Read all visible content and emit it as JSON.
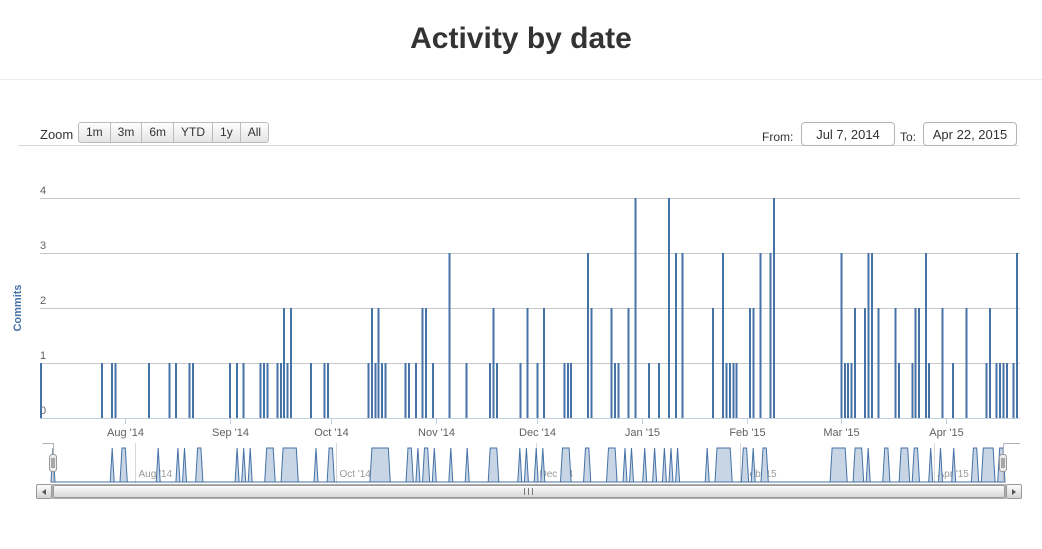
{
  "title": "Activity by date",
  "toolbar": {
    "zoom_label": "Zoom",
    "zoom_buttons": [
      "1m",
      "3m",
      "6m",
      "YTD",
      "1y",
      "All"
    ],
    "from_label": "From:",
    "from_value": "Jul 7, 2014",
    "to_label": "To:",
    "to_value": "Apr 22, 2015"
  },
  "icons": {
    "scrollbar_left": "left-arrow-icon",
    "scrollbar_right": "right-arrow-icon",
    "navigator_handle": "drag-handle-icon",
    "scrollbar_grip": "grip-icon"
  },
  "colors": {
    "bar": "#4572a7",
    "navigator_fill": "#c7d5e5",
    "navigator_line": "#4572a7",
    "grid": "#c8c8c8",
    "axis_line": "#c0d0e0",
    "tick": "#c0d0e0",
    "label": "#606060",
    "nav_label": "#999999",
    "nav_tick": "#d8d8d8",
    "outline": "#b2b1b6",
    "axis_title": "#4572a7",
    "title_color": "#333333"
  },
  "chart_data": {
    "type": "bar",
    "title": "Activity by date",
    "ylabel": "Commits",
    "xlabel": "",
    "ylim": [
      0,
      4
    ],
    "y_ticks": [
      0,
      1,
      2,
      3,
      4
    ],
    "grid": true,
    "x_start": "2014-07-07",
    "x_end": "2015-04-22",
    "x_ticks_main": [
      {
        "date": "2014-08-01",
        "label": "Aug '14"
      },
      {
        "date": "2014-09-01",
        "label": "Sep '14"
      },
      {
        "date": "2014-10-01",
        "label": "Oct '14"
      },
      {
        "date": "2014-11-01",
        "label": "Nov '14"
      },
      {
        "date": "2014-12-01",
        "label": "Dec '14"
      },
      {
        "date": "2015-01-01",
        "label": "Jan '15"
      },
      {
        "date": "2015-02-01",
        "label": "Feb '15"
      },
      {
        "date": "2015-03-01",
        "label": "Mar '15"
      },
      {
        "date": "2015-04-01",
        "label": "Apr '15"
      }
    ],
    "x_ticks_navigator": [
      {
        "date": "2014-08-01",
        "label": "Aug '14"
      },
      {
        "date": "2014-10-01",
        "label": "Oct '14"
      },
      {
        "date": "2014-12-01",
        "label": "Dec '14"
      },
      {
        "date": "2015-02-01",
        "label": "Feb '15"
      },
      {
        "date": "2015-04-01",
        "label": "Apr '15"
      }
    ],
    "series_name": "Commits",
    "points": [
      [
        "2014-07-07",
        1
      ],
      [
        "2014-07-25",
        1
      ],
      [
        "2014-07-28",
        1
      ],
      [
        "2014-07-29",
        1
      ],
      [
        "2014-08-08",
        1
      ],
      [
        "2014-08-14",
        1
      ],
      [
        "2014-08-16",
        1
      ],
      [
        "2014-08-20",
        1
      ],
      [
        "2014-08-21",
        1
      ],
      [
        "2014-09-01",
        1
      ],
      [
        "2014-09-03",
        1
      ],
      [
        "2014-09-05",
        1
      ],
      [
        "2014-09-10",
        1
      ],
      [
        "2014-09-11",
        1
      ],
      [
        "2014-09-12",
        1
      ],
      [
        "2014-09-15",
        1
      ],
      [
        "2014-09-16",
        1
      ],
      [
        "2014-09-17",
        2
      ],
      [
        "2014-09-18",
        1
      ],
      [
        "2014-09-19",
        2
      ],
      [
        "2014-09-25",
        1
      ],
      [
        "2014-09-29",
        1
      ],
      [
        "2014-09-30",
        1
      ],
      [
        "2014-10-12",
        1
      ],
      [
        "2014-10-13",
        2
      ],
      [
        "2014-10-14",
        1
      ],
      [
        "2014-10-15",
        2
      ],
      [
        "2014-10-16",
        1
      ],
      [
        "2014-10-17",
        1
      ],
      [
        "2014-10-23",
        1
      ],
      [
        "2014-10-24",
        1
      ],
      [
        "2014-10-26",
        1
      ],
      [
        "2014-10-28",
        2
      ],
      [
        "2014-10-29",
        2
      ],
      [
        "2014-10-31",
        1
      ],
      [
        "2014-11-05",
        3
      ],
      [
        "2014-11-10",
        1
      ],
      [
        "2014-11-17",
        1
      ],
      [
        "2014-11-18",
        2
      ],
      [
        "2014-11-19",
        1
      ],
      [
        "2014-11-26",
        1
      ],
      [
        "2014-11-28",
        2
      ],
      [
        "2014-12-01",
        1
      ],
      [
        "2014-12-03",
        2
      ],
      [
        "2014-12-09",
        1
      ],
      [
        "2014-12-10",
        1
      ],
      [
        "2014-12-11",
        1
      ],
      [
        "2014-12-16",
        3
      ],
      [
        "2014-12-17",
        2
      ],
      [
        "2014-12-23",
        2
      ],
      [
        "2014-12-24",
        1
      ],
      [
        "2014-12-25",
        1
      ],
      [
        "2014-12-28",
        2
      ],
      [
        "2014-12-30",
        4
      ],
      [
        "2015-01-03",
        1
      ],
      [
        "2015-01-06",
        1
      ],
      [
        "2015-01-09",
        4
      ],
      [
        "2015-01-11",
        3
      ],
      [
        "2015-01-13",
        3
      ],
      [
        "2015-01-22",
        2
      ],
      [
        "2015-01-25",
        3
      ],
      [
        "2015-01-26",
        1
      ],
      [
        "2015-01-27",
        1
      ],
      [
        "2015-01-28",
        1
      ],
      [
        "2015-01-29",
        1
      ],
      [
        "2015-02-02",
        2
      ],
      [
        "2015-02-03",
        2
      ],
      [
        "2015-02-05",
        3
      ],
      [
        "2015-02-08",
        3
      ],
      [
        "2015-02-09",
        4
      ],
      [
        "2015-03-01",
        3
      ],
      [
        "2015-03-02",
        1
      ],
      [
        "2015-03-03",
        1
      ],
      [
        "2015-03-04",
        1
      ],
      [
        "2015-03-05",
        2
      ],
      [
        "2015-03-08",
        2
      ],
      [
        "2015-03-09",
        3
      ],
      [
        "2015-03-10",
        3
      ],
      [
        "2015-03-12",
        2
      ],
      [
        "2015-03-17",
        2
      ],
      [
        "2015-03-18",
        1
      ],
      [
        "2015-03-22",
        1
      ],
      [
        "2015-03-23",
        2
      ],
      [
        "2015-03-24",
        2
      ],
      [
        "2015-03-26",
        3
      ],
      [
        "2015-03-27",
        1
      ],
      [
        "2015-03-31",
        2
      ],
      [
        "2015-04-03",
        1
      ],
      [
        "2015-04-07",
        2
      ],
      [
        "2015-04-13",
        1
      ],
      [
        "2015-04-14",
        2
      ],
      [
        "2015-04-16",
        1
      ],
      [
        "2015-04-17",
        1
      ],
      [
        "2015-04-18",
        1
      ],
      [
        "2015-04-19",
        1
      ],
      [
        "2015-04-21",
        1
      ],
      [
        "2015-04-22",
        3
      ]
    ]
  }
}
